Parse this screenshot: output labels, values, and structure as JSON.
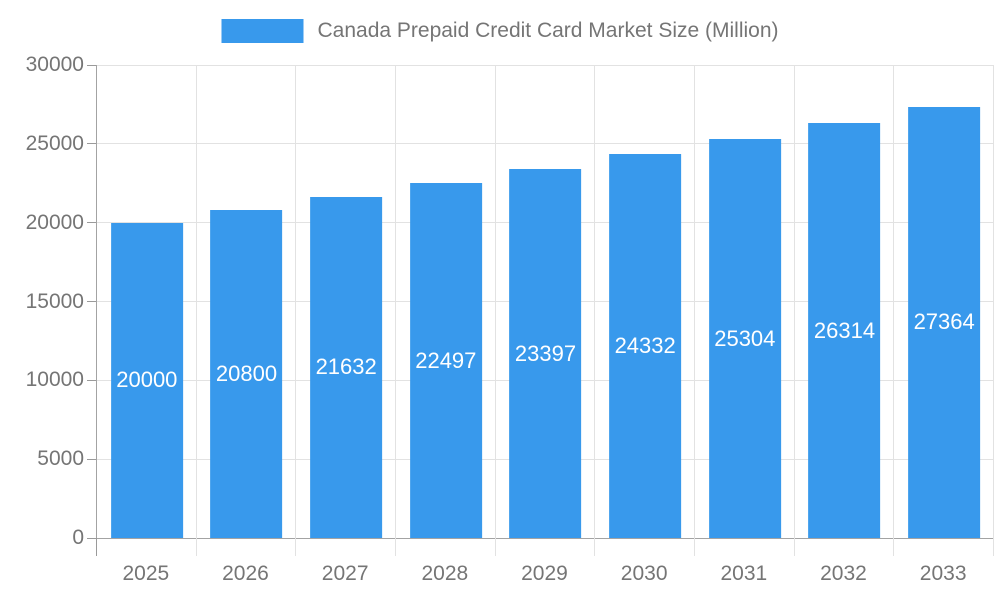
{
  "legend": {
    "label": "Canada Prepaid Credit Card Market Size (Million)"
  },
  "colors": {
    "bar": "#3899ec",
    "grid": "#e2e2e2",
    "axis": "#a3a3a3",
    "tick": "#9a9a9a",
    "axis_text": "#757575",
    "bar_label_text": "#ffffff",
    "background": "#ffffff"
  },
  "chart_data": {
    "type": "bar",
    "title": "Canada Prepaid Credit Card Market Size (Million)",
    "series_name": "Canada Prepaid Credit Card Market Size (Million)",
    "categories": [
      "2025",
      "2026",
      "2027",
      "2028",
      "2029",
      "2030",
      "2031",
      "2032",
      "2033"
    ],
    "values": [
      20000,
      20800,
      21632,
      22497,
      23397,
      24332,
      25304,
      26314,
      27364
    ],
    "xlabel": "",
    "ylabel": "",
    "ylim": [
      0,
      30000
    ],
    "yticks": [
      0,
      5000,
      10000,
      15000,
      20000,
      25000,
      30000
    ],
    "grid": true,
    "bar_labels_visible": true,
    "legend_position": "top"
  }
}
